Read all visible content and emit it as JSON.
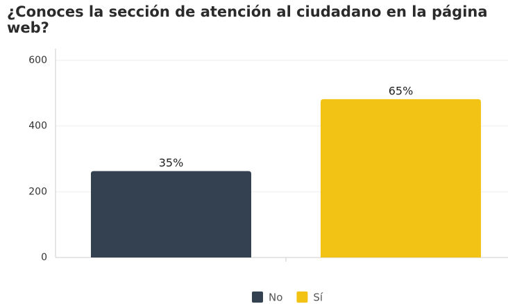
{
  "chart_data": {
    "type": "bar",
    "title": "¿Conoces la sección de atención al ciudadano en la página web?",
    "series": [
      {
        "name": "No",
        "color": "#344151",
        "values": [
          263
        ],
        "value_labels": [
          "35%"
        ]
      },
      {
        "name": "Sí",
        "color": "#f2c315",
        "values": [
          482
        ],
        "value_labels": [
          "65%"
        ]
      }
    ],
    "ylim": [
      0,
      600
    ],
    "yticks": [
      0,
      200,
      400,
      600
    ],
    "grid": true,
    "legend": "bottom"
  }
}
